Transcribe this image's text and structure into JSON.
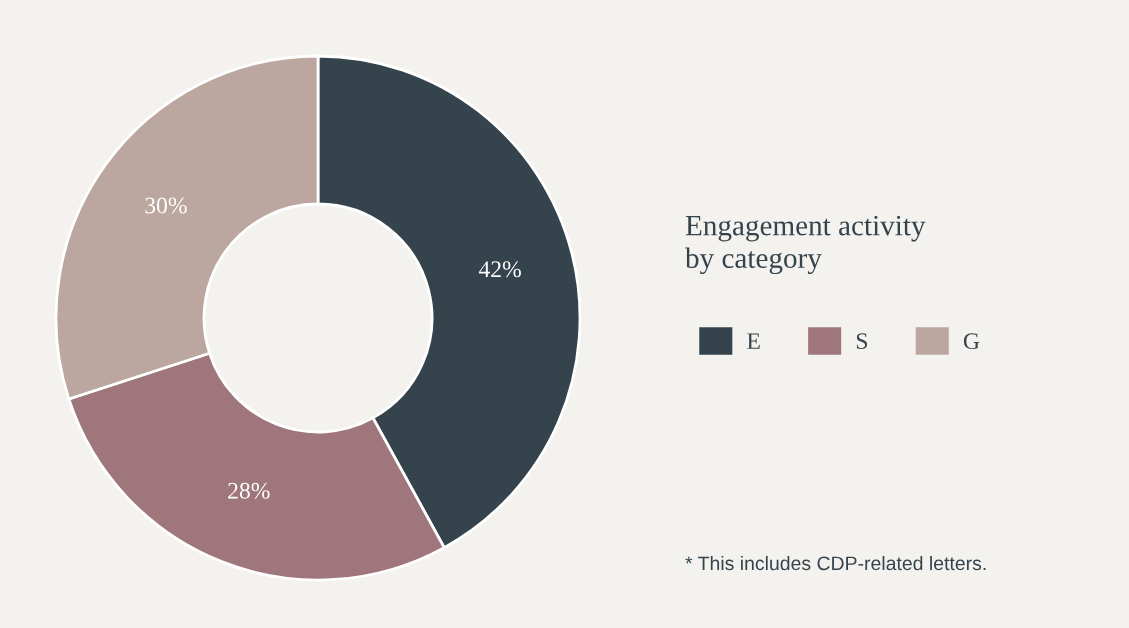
{
  "chart_data": {
    "type": "donut",
    "title": "Engagement activity\nby category",
    "categories": [
      "E",
      "S",
      "G"
    ],
    "values": [
      42,
      28,
      30
    ],
    "colors": [
      "#35434c",
      "#9f767c",
      "#bba79f"
    ],
    "value_labels": [
      "42%",
      "28%",
      "30%"
    ],
    "legend": "right",
    "annotations": [
      "* This includes CDP-related letters."
    ]
  }
}
